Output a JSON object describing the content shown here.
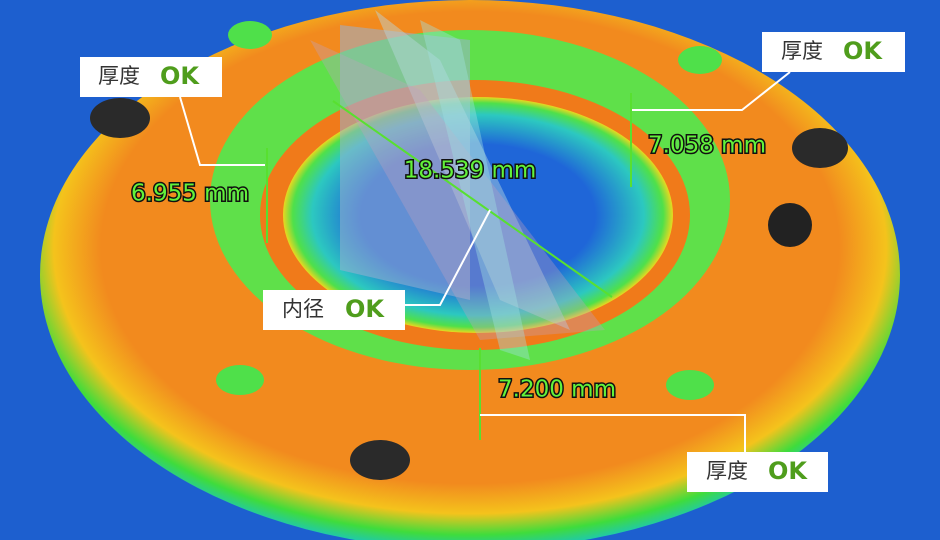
{
  "callouts": [
    {
      "label": "厚度",
      "status": "OK"
    },
    {
      "label": "厚度",
      "status": "OK"
    },
    {
      "label": "内径",
      "status": "OK"
    },
    {
      "label": "厚度",
      "status": "OK"
    }
  ],
  "measurements": [
    "6.955 mm",
    "7.058 mm",
    "18.539 mm",
    "7.200 mm"
  ]
}
